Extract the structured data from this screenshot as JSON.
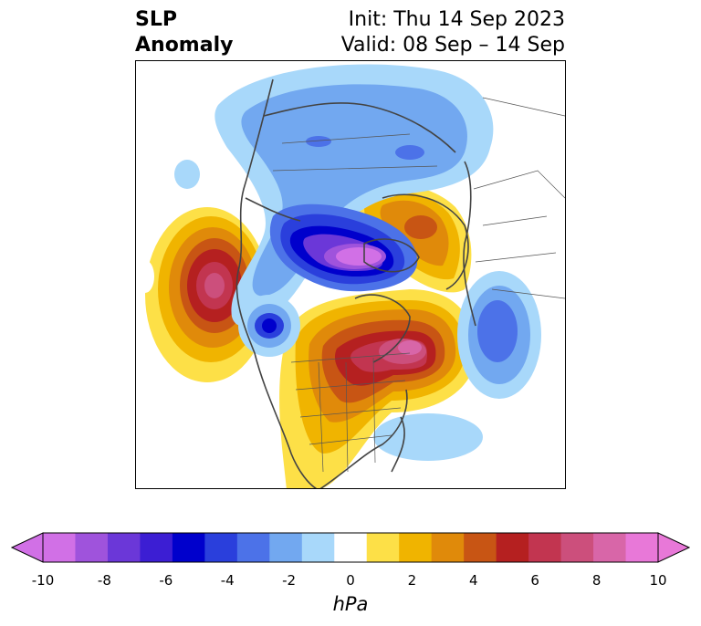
{
  "title": {
    "left_line1": "SLP",
    "left_line2": "Anomaly",
    "right_line1": "Init: Thu 14 Sep 2023",
    "right_line2": "Valid: 08 Sep – 14 Sep"
  },
  "colorbar": {
    "units": "hPa",
    "ticks": [
      "-10",
      "-8",
      "-6",
      "-4",
      "-2",
      "0",
      "2",
      "4",
      "6",
      "8",
      "10"
    ],
    "levels": [
      -10,
      -9,
      -8,
      -7,
      -6,
      -5,
      -4,
      -3,
      -2,
      -1,
      1,
      2,
      3,
      4,
      5,
      6,
      7,
      8,
      9,
      10
    ],
    "colors": [
      "#d170e6",
      "#9f53dc",
      "#6b37d8",
      "#3c1ed3",
      "#0000cc",
      "#2a3fdc",
      "#4c72e8",
      "#72a8f0",
      "#a8d8fa",
      "#ffffff",
      "#fde047",
      "#f0b400",
      "#e08a0a",
      "#c85514",
      "#b52020",
      "#c23550",
      "#cc4f7c",
      "#d866a8",
      "#e878d8"
    ],
    "extend_low_color": "#d170e6",
    "extend_high_color": "#e878d8"
  }
}
